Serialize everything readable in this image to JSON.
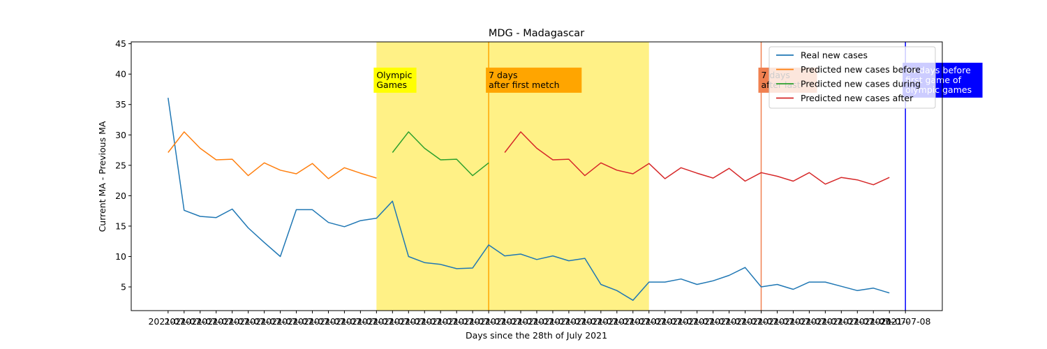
{
  "chart_data": {
    "type": "line",
    "title": "MDG - Madagascar",
    "xlabel": "Days since the 28th of July 2021",
    "ylabel": "Current MA - Previous MA",
    "xlim": [
      -2.3,
      48.3
    ],
    "ylim": [
      1.1,
      45.3
    ],
    "yticks": [
      5,
      10,
      15,
      20,
      25,
      30,
      35,
      40,
      45
    ],
    "xtick_first": "2021-07-",
    "xtick_last": "2021-07-08",
    "grid": false,
    "legend_position": "top-right",
    "spans": [
      {
        "x0": 13,
        "x1": 30,
        "color": "#fff080",
        "opacity": 0.95
      }
    ],
    "vlines": [
      {
        "x": 20,
        "color": "#ffa500"
      },
      {
        "x": 37,
        "color": "#f08050"
      },
      {
        "x": 46,
        "color": "#0000ff"
      }
    ],
    "annotations": [
      {
        "x": 13,
        "y": 39,
        "lines": [
          "Olympic",
          "Games"
        ],
        "bg": "#ffff00",
        "color": "#000000"
      },
      {
        "x": 20,
        "y": 39,
        "lines": [
          "7 days",
          "after first metch"
        ],
        "bg": "#ffa500",
        "color": "#000000"
      },
      {
        "x": 37,
        "y": 39,
        "lines": [
          "7 days",
          "after last"
        ],
        "bg": "#f08050",
        "color": "#000000"
      },
      {
        "x": 46,
        "y": 39,
        "lines": [
          "14 days before",
          "first game of",
          "olympic games"
        ],
        "bg": "#0000ff",
        "color": "#ffffff"
      }
    ],
    "series": [
      {
        "name": "Real new cases",
        "color": "#1f77b4",
        "x": [
          0,
          1,
          2,
          3,
          4,
          5,
          6,
          7,
          8,
          9,
          10,
          11,
          12,
          13,
          14,
          15,
          16,
          17,
          18,
          19,
          20,
          21,
          22,
          23,
          24,
          25,
          26,
          27,
          28,
          29,
          30,
          31,
          32,
          33,
          34,
          35,
          36,
          37,
          38,
          39,
          40,
          41,
          42,
          43,
          44,
          45
        ],
        "y": [
          36.1,
          17.6,
          16.6,
          16.4,
          17.8,
          14.7,
          12.3,
          10.0,
          17.7,
          17.7,
          15.6,
          14.9,
          15.9,
          16.3,
          19.1,
          10.0,
          9.0,
          8.7,
          8.0,
          8.1,
          11.9,
          10.1,
          10.4,
          9.5,
          10.1,
          9.3,
          9.7,
          5.4,
          4.4,
          2.8,
          5.8,
          5.8,
          6.3,
          5.4,
          6.0,
          6.9,
          8.2,
          5.0,
          5.4,
          4.6,
          5.8,
          5.8,
          5.1,
          4.4,
          4.8,
          4.0
        ]
      },
      {
        "name": "Predicted new cases before",
        "color": "#ff7f0e",
        "x": [
          0,
          1,
          2,
          3,
          4,
          5,
          6,
          7,
          8,
          9,
          10,
          11,
          12,
          13
        ],
        "y": [
          27.1,
          30.5,
          27.8,
          25.9,
          26.0,
          23.3,
          25.4,
          24.2,
          23.6,
          25.3,
          22.8,
          24.6,
          23.7,
          22.9
        ]
      },
      {
        "name": "Predicted new cases during",
        "color": "#2ca02c",
        "x": [
          14,
          15,
          16,
          17,
          18,
          19,
          20
        ],
        "y": [
          27.1,
          30.5,
          27.8,
          25.9,
          26.0,
          23.3,
          25.4
        ]
      },
      {
        "name": "Predicted new cases after",
        "color": "#d62728",
        "x": [
          21,
          22,
          23,
          24,
          25,
          26,
          27,
          28,
          29,
          30,
          31,
          32,
          33,
          34,
          35,
          36,
          37,
          38,
          39,
          40,
          41,
          42,
          43,
          44,
          45
        ],
        "y": [
          27.1,
          30.5,
          27.8,
          25.9,
          26.0,
          23.3,
          25.4,
          24.2,
          23.6,
          25.3,
          22.8,
          24.6,
          23.7,
          22.9,
          24.5,
          22.4,
          23.8,
          23.2,
          22.4,
          23.8,
          21.9,
          23.0,
          22.6,
          21.8,
          23.0
        ]
      }
    ]
  }
}
